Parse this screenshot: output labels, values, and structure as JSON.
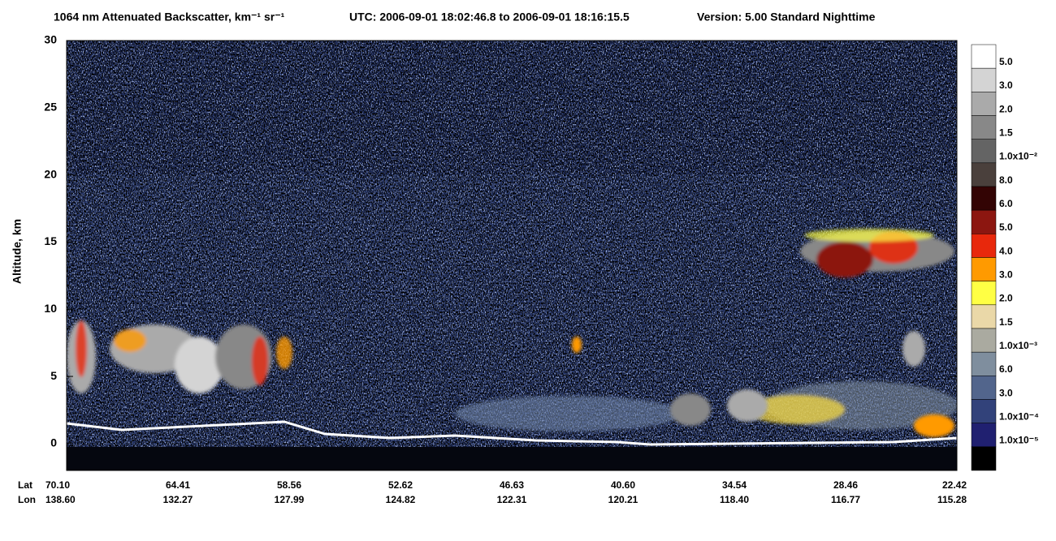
{
  "chart_data": {
    "type": "heatmap",
    "title": "1064 nm Attenuated Backscatter, km⁻¹ sr⁻¹",
    "time_range": "UTC:  2006-09-01 18:02:46.8  to  2006-09-01 18:16:15.5",
    "version": "Version: 5.00  Standard  Nighttime",
    "ylabel": "Altitude, km",
    "ylim": [
      -2,
      30
    ],
    "yticks": [
      0,
      5,
      10,
      15,
      20,
      25,
      30
    ],
    "x_row_labels": [
      "Lat",
      "Lon"
    ],
    "lat": [
      "70.10",
      "64.41",
      "58.56",
      "52.62",
      "46.63",
      "40.60",
      "34.54",
      "28.46",
      "22.42"
    ],
    "lon": [
      "138.60",
      "132.27",
      "127.99",
      "124.82",
      "122.31",
      "120.21",
      "118.40",
      "116.77",
      "115.28"
    ],
    "colorbar": {
      "colors": [
        "#ffffff",
        "#d4d4d4",
        "#aaaaaa",
        "#888888",
        "#646464",
        "#4a403c",
        "#330404",
        "#8c1610",
        "#e8280c",
        "#ff9a00",
        "#ffff44",
        "#ead8a8",
        "#aaaaa0",
        "#7f8e9e",
        "#52658c",
        "#32427a",
        "#202070",
        "#000000"
      ],
      "labels": [
        "5.0",
        "3.0",
        "2.0",
        "1.5",
        "1.0x10⁻²",
        "8.0",
        "6.0",
        "5.0",
        "4.0",
        "3.0",
        "2.0",
        "1.5",
        "1.0x10⁻³",
        "6.0",
        "3.0",
        "1.0x10⁻⁴",
        "1.0x10⁻⁵"
      ]
    }
  }
}
